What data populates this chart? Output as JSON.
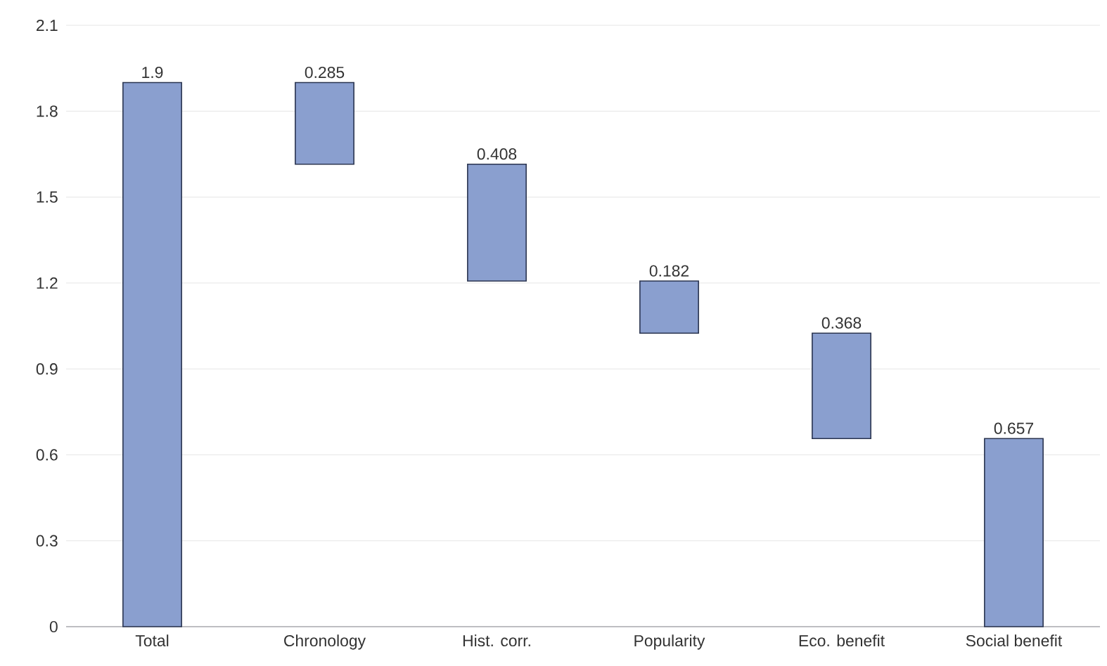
{
  "chart_data": {
    "type": "bar",
    "categories": [
      "Total",
      "Chronology",
      "Hist. corr.",
      "Popularity",
      "Eco. benefit",
      "Social benefit"
    ],
    "values": [
      1.9,
      0.285,
      0.408,
      0.182,
      0.368,
      0.657
    ],
    "base": [
      0,
      1.615,
      1.207,
      1.025,
      0.657,
      0
    ],
    "color": "#8a9fcf",
    "ylim": [
      0,
      2.1
    ],
    "yticks": [
      0,
      0.3,
      0.6,
      0.9,
      1.2,
      1.5,
      1.8,
      2.1
    ],
    "grid": "y",
    "data_labels": true
  }
}
